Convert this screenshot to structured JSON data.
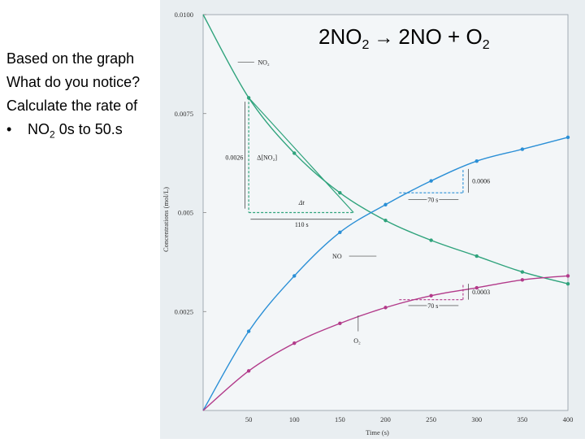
{
  "slide": {
    "equation": {
      "reactant_coef": "2NO",
      "reactant_sub": "2",
      "arrow": "→",
      "product1": "2NO + O",
      "product2_sub": "2"
    },
    "text_lines": [
      "Based on the graph",
      "What do you notice?",
      "Calculate the rate of"
    ],
    "bullet": {
      "dot": "•",
      "text_main": "NO",
      "text_sub": "2",
      "text_rest": " 0s to 50.s"
    }
  },
  "chart_data": {
    "type": "line",
    "xlabel": "Time (s)",
    "ylabel": "Concentrations (mol/L)",
    "xlim": [
      0,
      400
    ],
    "ylim": [
      0,
      0.01
    ],
    "x_ticks": [
      50,
      100,
      150,
      200,
      250,
      300,
      350,
      400
    ],
    "y_ticks": [
      {
        "value": 0.0025,
        "label": "0.0025"
      },
      {
        "value": 0.005,
        "label": "0.005"
      },
      {
        "value": 0.0075,
        "label": "0.0075"
      },
      {
        "value": 0.01,
        "label": "0.0100"
      }
    ],
    "series": [
      {
        "name": "NO₂",
        "color": "#2fa37c",
        "x": [
          0,
          50,
          100,
          150,
          200,
          250,
          300,
          350,
          400
        ],
        "y": [
          0.01,
          0.0079,
          0.0065,
          0.0055,
          0.0048,
          0.0043,
          0.0039,
          0.0035,
          0.0032
        ]
      },
      {
        "name": "NO",
        "color": "#2a8fd6",
        "x": [
          0,
          50,
          100,
          150,
          200,
          250,
          300,
          350,
          400
        ],
        "y": [
          0,
          0.002,
          0.0034,
          0.0045,
          0.0052,
          0.0058,
          0.0063,
          0.0066,
          0.0069
        ]
      },
      {
        "name": "O₂",
        "color": "#b23a8a",
        "x": [
          0,
          50,
          100,
          150,
          200,
          250,
          300,
          350,
          400
        ],
        "y": [
          0,
          0.001,
          0.0017,
          0.0022,
          0.0026,
          0.0029,
          0.0031,
          0.0033,
          0.0034
        ]
      }
    ],
    "annotations": {
      "delta_no2_value": "0.0026",
      "delta_no2_label": "Δ[NO₂]",
      "delta_t_label": "Δt",
      "delta_t_value": "110 s",
      "no_rise": "0.0006",
      "no_run": "70 s",
      "o2_rise": "0.0003",
      "o2_run": "70 s"
    }
  }
}
